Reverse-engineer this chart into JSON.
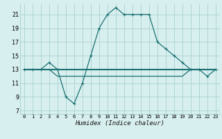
{
  "xlabel": "Humidex (Indice chaleur)",
  "background_color": "#d8efef",
  "grid_color": "#aed4d4",
  "line_color": "#1a7070",
  "x_ticks": [
    0,
    1,
    2,
    3,
    4,
    5,
    6,
    7,
    8,
    9,
    10,
    11,
    12,
    13,
    14,
    15,
    16,
    17,
    18,
    19,
    20,
    21,
    22,
    23
  ],
  "y_ticks": [
    7,
    9,
    11,
    13,
    15,
    17,
    19,
    21
  ],
  "xlim": [
    -0.5,
    23.5
  ],
  "ylim": [
    6.5,
    22.5
  ],
  "series": {
    "main": [
      13,
      13,
      13,
      14,
      13,
      9,
      8,
      11,
      15,
      19,
      21,
      22,
      21,
      21,
      21,
      21,
      17,
      16,
      15,
      14,
      13,
      13,
      12,
      13
    ],
    "flat1": [
      13,
      13,
      13,
      13,
      13,
      13,
      13,
      13,
      13,
      13,
      13,
      13,
      13,
      13,
      13,
      13,
      13,
      13,
      13,
      13,
      13,
      13,
      13,
      13
    ],
    "flat2": [
      13,
      13,
      13,
      13,
      13,
      13,
      13,
      13,
      13,
      13,
      13,
      13,
      13,
      13,
      13,
      13,
      13,
      13,
      13,
      13,
      13,
      13,
      13,
      13
    ],
    "flat3": [
      13,
      13,
      13,
      13,
      12,
      12,
      12,
      12,
      12,
      12,
      12,
      12,
      12,
      12,
      12,
      12,
      12,
      12,
      12,
      12,
      13,
      13,
      13,
      13
    ]
  },
  "linewidth": 0.9,
  "marker_size": 3.5
}
